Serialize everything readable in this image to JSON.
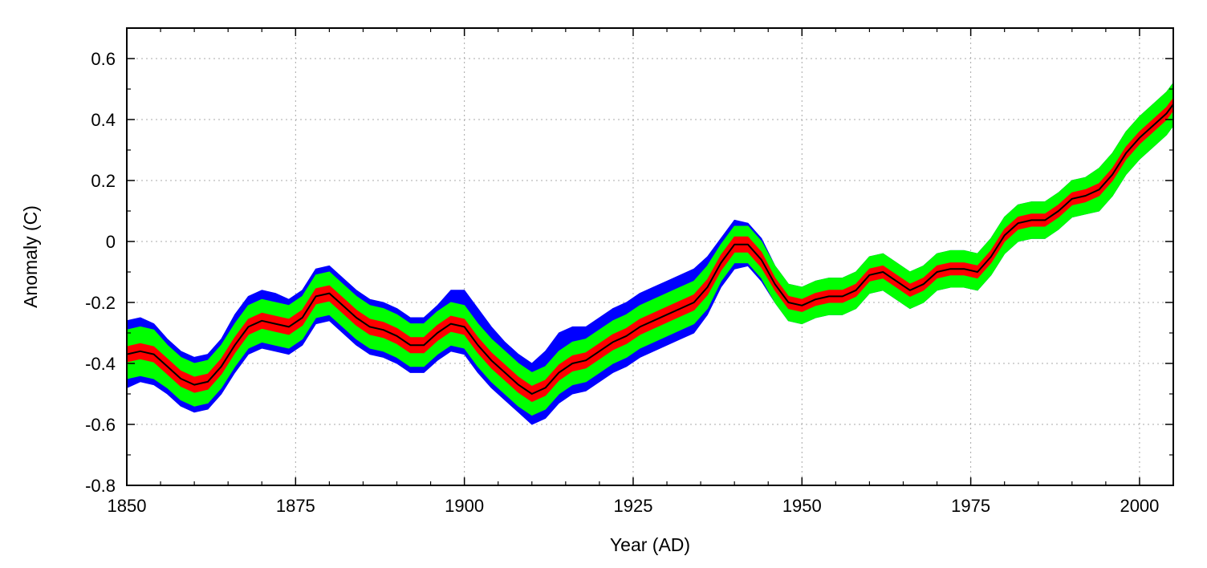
{
  "chart_data": {
    "type": "line",
    "title": "",
    "xlabel": "Year (AD)",
    "ylabel": "Anomaly (C)",
    "xlim": [
      1850,
      2005
    ],
    "ylim": [
      -0.8,
      0.7
    ],
    "x_ticks": [
      1850,
      1875,
      1900,
      1925,
      1950,
      1975,
      2000
    ],
    "x_tick_labels": [
      "1850",
      "1875",
      "1900",
      "1925",
      "1950",
      "1975",
      "2000"
    ],
    "y_ticks": [
      -0.8,
      -0.6,
      -0.4,
      -0.2,
      0,
      0.2,
      0.4,
      0.6
    ],
    "y_tick_labels": [
      "-0.8",
      "-0.6",
      "-0.4",
      "-0.2",
      "0",
      "0.2",
      "0.4",
      "0.6"
    ],
    "grid": true,
    "legend": "none",
    "colors": {
      "outer_band": "#0000ff",
      "middle_band": "#00ff00",
      "inner_band": "#ff0000",
      "line": "#000000",
      "grid": "#a8a8a8"
    },
    "x": [
      1850,
      1852,
      1854,
      1856,
      1858,
      1860,
      1862,
      1864,
      1866,
      1868,
      1870,
      1872,
      1874,
      1876,
      1878,
      1880,
      1882,
      1884,
      1886,
      1888,
      1890,
      1892,
      1894,
      1896,
      1898,
      1900,
      1902,
      1904,
      1906,
      1908,
      1910,
      1912,
      1914,
      1916,
      1918,
      1920,
      1922,
      1924,
      1926,
      1928,
      1930,
      1932,
      1934,
      1936,
      1938,
      1940,
      1942,
      1944,
      1946,
      1948,
      1950,
      1952,
      1954,
      1956,
      1958,
      1960,
      1962,
      1964,
      1966,
      1968,
      1970,
      1972,
      1974,
      1976,
      1978,
      1980,
      1982,
      1984,
      1986,
      1988,
      1990,
      1992,
      1994,
      1996,
      1998,
      2000,
      2002,
      2004,
      2005
    ],
    "series": [
      {
        "values": [
          -0.37,
          -0.36,
          -0.37,
          -0.41,
          -0.45,
          -0.47,
          -0.46,
          -0.41,
          -0.34,
          -0.28,
          -0.26,
          -0.27,
          -0.28,
          -0.25,
          -0.18,
          -0.17,
          -0.21,
          -0.25,
          -0.28,
          -0.29,
          -0.31,
          -0.34,
          -0.34,
          -0.3,
          -0.27,
          -0.28,
          -0.34,
          -0.39,
          -0.43,
          -0.47,
          -0.5,
          -0.48,
          -0.43,
          -0.4,
          -0.39,
          -0.36,
          -0.33,
          -0.31,
          -0.28,
          -0.26,
          -0.24,
          -0.22,
          -0.2,
          -0.15,
          -0.07,
          -0.01,
          -0.01,
          -0.06,
          -0.14,
          -0.2,
          -0.21,
          -0.19,
          -0.18,
          -0.18,
          -0.16,
          -0.11,
          -0.1,
          -0.13,
          -0.16,
          -0.14,
          -0.1,
          -0.09,
          -0.09,
          -0.1,
          -0.05,
          0.02,
          0.06,
          0.07,
          0.07,
          0.1,
          0.14,
          0.15,
          0.17,
          0.22,
          0.29,
          0.34,
          0.38,
          0.42,
          0.45
        ]
      }
    ],
    "bands": [
      {
        "level": "outer",
        "lower_offset": [
          -0.11,
          -0.1,
          -0.1,
          -0.09,
          -0.09,
          -0.09,
          -0.09,
          -0.09,
          -0.09,
          -0.09,
          -0.09,
          -0.09,
          -0.09,
          -0.09,
          -0.09,
          -0.09,
          -0.09,
          -0.09,
          -0.09,
          -0.09,
          -0.09,
          -0.09,
          -0.09,
          -0.09,
          -0.09,
          -0.09,
          -0.09,
          -0.09,
          -0.09,
          -0.09,
          -0.1,
          -0.1,
          -0.1,
          -0.1,
          -0.1,
          -0.1,
          -0.1,
          -0.1,
          -0.1,
          -0.1,
          -0.1,
          -0.1,
          -0.1,
          -0.09,
          -0.08,
          -0.08,
          -0.07,
          -0.07,
          -0.06,
          -0.06,
          -0.06,
          -0.06,
          -0.06,
          -0.06,
          -0.06,
          -0.06,
          -0.06,
          -0.06,
          -0.06,
          -0.06,
          -0.06,
          -0.06,
          -0.06,
          -0.06,
          -0.06,
          -0.06,
          -0.06,
          -0.06,
          -0.06,
          -0.06,
          -0.06,
          -0.06,
          -0.07,
          -0.07,
          -0.07,
          -0.07,
          -0.07,
          -0.07,
          -0.07
        ],
        "upper_offset": [
          0.11,
          0.11,
          0.1,
          0.09,
          0.09,
          0.09,
          0.09,
          0.09,
          0.1,
          0.1,
          0.1,
          0.1,
          0.09,
          0.09,
          0.09,
          0.09,
          0.09,
          0.09,
          0.09,
          0.09,
          0.09,
          0.09,
          0.09,
          0.09,
          0.11,
          0.12,
          0.12,
          0.11,
          0.1,
          0.1,
          0.1,
          0.12,
          0.13,
          0.12,
          0.11,
          0.11,
          0.11,
          0.11,
          0.11,
          0.11,
          0.11,
          0.11,
          0.11,
          0.1,
          0.08,
          0.08,
          0.07,
          0.07,
          0.06,
          0.06,
          0.06,
          0.06,
          0.06,
          0.06,
          0.06,
          0.06,
          0.06,
          0.06,
          0.06,
          0.06,
          0.06,
          0.06,
          0.06,
          0.06,
          0.06,
          0.06,
          0.06,
          0.06,
          0.06,
          0.06,
          0.06,
          0.06,
          0.07,
          0.07,
          0.07,
          0.07,
          0.07,
          0.07,
          0.07
        ]
      },
      {
        "level": "middle",
        "lower_offset": [
          -0.08,
          -0.08,
          -0.08,
          -0.07,
          -0.07,
          -0.07,
          -0.07,
          -0.07,
          -0.07,
          -0.07,
          -0.07,
          -0.07,
          -0.07,
          -0.07,
          -0.07,
          -0.07,
          -0.07,
          -0.07,
          -0.07,
          -0.07,
          -0.07,
          -0.07,
          -0.07,
          -0.07,
          -0.07,
          -0.07,
          -0.07,
          -0.07,
          -0.07,
          -0.07,
          -0.07,
          -0.07,
          -0.07,
          -0.07,
          -0.07,
          -0.07,
          -0.07,
          -0.07,
          -0.07,
          -0.07,
          -0.07,
          -0.07,
          -0.07,
          -0.07,
          -0.06,
          -0.06,
          -0.06,
          -0.06,
          -0.06,
          -0.06,
          -0.06,
          -0.06,
          -0.06,
          -0.06,
          -0.06,
          -0.06,
          -0.06,
          -0.06,
          -0.06,
          -0.06,
          -0.06,
          -0.06,
          -0.06,
          -0.06,
          -0.06,
          -0.06,
          -0.06,
          -0.06,
          -0.06,
          -0.06,
          -0.06,
          -0.06,
          -0.07,
          -0.07,
          -0.07,
          -0.07,
          -0.07,
          -0.07,
          -0.07
        ],
        "upper_offset": [
          0.08,
          0.08,
          0.08,
          0.07,
          0.07,
          0.07,
          0.07,
          0.07,
          0.07,
          0.07,
          0.07,
          0.07,
          0.07,
          0.07,
          0.07,
          0.07,
          0.07,
          0.07,
          0.07,
          0.07,
          0.07,
          0.07,
          0.07,
          0.07,
          0.07,
          0.07,
          0.07,
          0.07,
          0.07,
          0.07,
          0.07,
          0.07,
          0.07,
          0.07,
          0.07,
          0.07,
          0.07,
          0.07,
          0.07,
          0.07,
          0.07,
          0.07,
          0.07,
          0.07,
          0.06,
          0.06,
          0.06,
          0.06,
          0.06,
          0.06,
          0.06,
          0.06,
          0.06,
          0.06,
          0.06,
          0.06,
          0.06,
          0.06,
          0.06,
          0.06,
          0.06,
          0.06,
          0.06,
          0.06,
          0.06,
          0.06,
          0.06,
          0.06,
          0.06,
          0.06,
          0.06,
          0.06,
          0.07,
          0.07,
          0.07,
          0.07,
          0.07,
          0.07,
          0.07
        ]
      },
      {
        "level": "inner",
        "lower_offset": [
          -0.025,
          -0.025,
          -0.025,
          -0.025,
          -0.025,
          -0.025,
          -0.025,
          -0.025,
          -0.025,
          -0.025,
          -0.025,
          -0.025,
          -0.025,
          -0.025,
          -0.025,
          -0.025,
          -0.025,
          -0.025,
          -0.025,
          -0.025,
          -0.025,
          -0.025,
          -0.025,
          -0.025,
          -0.025,
          -0.025,
          -0.025,
          -0.025,
          -0.025,
          -0.025,
          -0.025,
          -0.025,
          -0.025,
          -0.025,
          -0.025,
          -0.025,
          -0.025,
          -0.025,
          -0.025,
          -0.025,
          -0.025,
          -0.025,
          -0.025,
          -0.025,
          -0.025,
          -0.025,
          -0.025,
          -0.025,
          -0.02,
          -0.02,
          -0.02,
          -0.02,
          -0.02,
          -0.02,
          -0.02,
          -0.02,
          -0.02,
          -0.02,
          -0.02,
          -0.02,
          -0.02,
          -0.02,
          -0.02,
          -0.02,
          -0.02,
          -0.02,
          -0.02,
          -0.02,
          -0.02,
          -0.02,
          -0.02,
          -0.02,
          -0.02,
          -0.02,
          -0.02,
          -0.02,
          -0.02,
          -0.02,
          -0.02
        ],
        "upper_offset": [
          0.025,
          0.025,
          0.025,
          0.025,
          0.025,
          0.025,
          0.025,
          0.025,
          0.025,
          0.025,
          0.025,
          0.025,
          0.025,
          0.025,
          0.025,
          0.025,
          0.025,
          0.025,
          0.025,
          0.025,
          0.025,
          0.025,
          0.025,
          0.025,
          0.025,
          0.025,
          0.025,
          0.025,
          0.025,
          0.025,
          0.025,
          0.025,
          0.025,
          0.025,
          0.025,
          0.025,
          0.025,
          0.025,
          0.025,
          0.025,
          0.025,
          0.025,
          0.025,
          0.025,
          0.025,
          0.025,
          0.025,
          0.025,
          0.02,
          0.02,
          0.02,
          0.02,
          0.02,
          0.02,
          0.02,
          0.02,
          0.02,
          0.02,
          0.02,
          0.02,
          0.02,
          0.02,
          0.02,
          0.02,
          0.02,
          0.02,
          0.02,
          0.02,
          0.02,
          0.02,
          0.02,
          0.02,
          0.02,
          0.02,
          0.02,
          0.02,
          0.02,
          0.02,
          0.02
        ]
      }
    ]
  }
}
